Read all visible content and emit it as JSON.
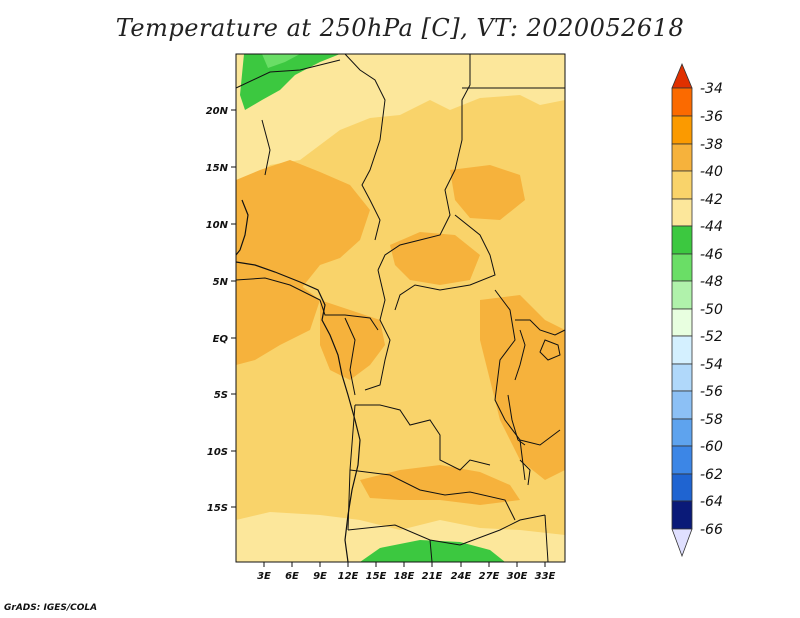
{
  "title": "Temperature at 250hPa [C], VT: 2020052618",
  "footer": "GrADS: IGES/COLA",
  "map": {
    "lat_labels": [
      "20N",
      "15N",
      "10N",
      "5N",
      "EQ",
      "5S",
      "10S",
      "15S"
    ],
    "lon_labels": [
      "3E",
      "6E",
      "9E",
      "12E",
      "15E",
      "18E",
      "21E",
      "24E",
      "27E",
      "30E",
      "33E"
    ]
  },
  "colorbar": {
    "labels": [
      "-34",
      "-36",
      "-38",
      "-40",
      "-42",
      "-44",
      "-46",
      "-48",
      "-50",
      "-52",
      "-54",
      "-56",
      "-58",
      "-60",
      "-62",
      "-64",
      "-66"
    ],
    "colors": [
      "#ee3a00",
      "#fb6a00",
      "#fb9a00",
      "#f8b43a",
      "#fcd86c",
      "#fef5a8",
      "#36c83c",
      "#6ee06a",
      "#b0f2ab",
      "#e8ffe0",
      "#d4f0ff",
      "#b0d8fa",
      "#8cc0f5",
      "#5ea3ee",
      "#3c86e6",
      "#1f64d1",
      "#0a3fb0",
      "#0a1a78"
    ],
    "top_arrow_color": "#e03000",
    "bottom_arrow_color": "#e0e0ff"
  },
  "legend_colors": {
    "warm_38": "#f6b23c",
    "warm_40": "#f9d36a",
    "warm_42": "#fce79b",
    "cold_44": "#3cc840",
    "cold_46": "#6ade66"
  }
}
